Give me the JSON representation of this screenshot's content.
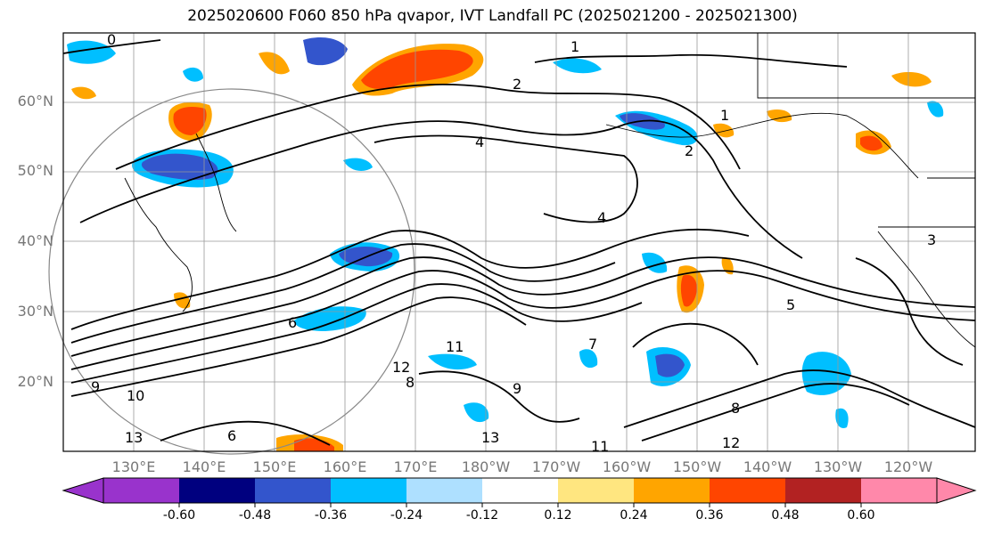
{
  "title": "2025020600 F060 850 hPa qvapor, IVT Landfall PC (2025021200 - 2025021300)",
  "lat_labels": [
    "60°N",
    "50°N",
    "40°N",
    "30°N",
    "20°N"
  ],
  "lon_labels": [
    "130°E",
    "140°E",
    "150°E",
    "160°E",
    "170°E",
    "180°W",
    "170°W",
    "160°W",
    "150°W",
    "140°W",
    "130°W",
    "120°W"
  ],
  "colorbar": {
    "ticks": [
      "-0.60",
      "-0.48",
      "-0.36",
      "-0.24",
      "-0.12",
      "0.12",
      "0.24",
      "0.36",
      "0.48",
      "0.60"
    ],
    "colors": [
      "#9933cc",
      "#00007f",
      "#3355cc",
      "#00bfff",
      "#aee0ff",
      "#ffffff",
      "#ffe680",
      "#ffa500",
      "#ff4500",
      "#b22222",
      "#ff88aa"
    ]
  },
  "contour_labels": [
    "0",
    "1",
    "2",
    "4",
    "1",
    "2",
    "4",
    "5",
    "3",
    "6",
    "9",
    "10",
    "11",
    "12",
    "13",
    "8",
    "7",
    "11",
    "12",
    "13",
    "6",
    "8",
    "9"
  ],
  "colors": {
    "blue_anom": "#3355cc",
    "cyan_anom": "#00bfff",
    "orange_anom": "#ffa500",
    "red_anom": "#ff4500",
    "grid": "#999999",
    "contour": "#000000"
  }
}
